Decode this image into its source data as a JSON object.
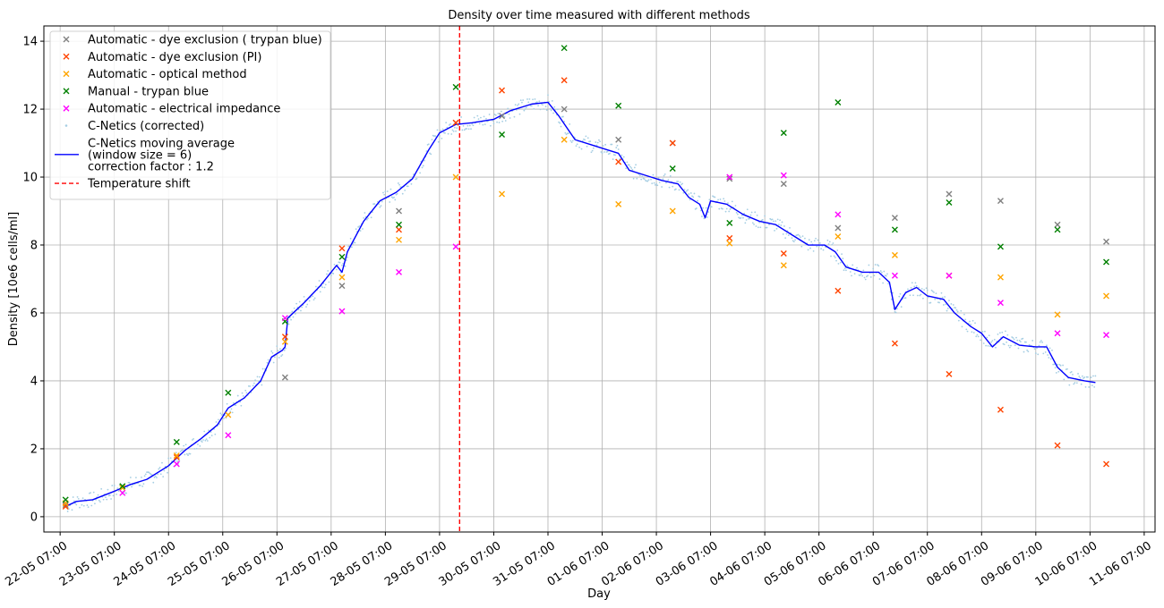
{
  "chart_data": {
    "type": "scatter",
    "title": "Density over time measured with different methods",
    "xlabel": "Day",
    "ylabel": "Density [10e6 cells/ml]",
    "xlim": [
      -0.3,
      20.2
    ],
    "ylim": [
      -0.45,
      14.45
    ],
    "grid": true,
    "x_unit": "days since 22-05 07:00",
    "x_ticks": [
      {
        "value": 0,
        "label": "22-05 07:00"
      },
      {
        "value": 1,
        "label": "23-05 07:00"
      },
      {
        "value": 2,
        "label": "24-05 07:00"
      },
      {
        "value": 3,
        "label": "25-05 07:00"
      },
      {
        "value": 4,
        "label": "26-05 07:00"
      },
      {
        "value": 5,
        "label": "27-05 07:00"
      },
      {
        "value": 6,
        "label": "28-05 07:00"
      },
      {
        "value": 7,
        "label": "29-05 07:00"
      },
      {
        "value": 8,
        "label": "30-05 07:00"
      },
      {
        "value": 9,
        "label": "31-05 07:00"
      },
      {
        "value": 10,
        "label": "01-06 07:00"
      },
      {
        "value": 11,
        "label": "02-06 07:00"
      },
      {
        "value": 12,
        "label": "03-06 07:00"
      },
      {
        "value": 13,
        "label": "04-06 07:00"
      },
      {
        "value": 14,
        "label": "05-06 07:00"
      },
      {
        "value": 15,
        "label": "06-06 07:00"
      },
      {
        "value": 16,
        "label": "07-06 07:00"
      },
      {
        "value": 17,
        "label": "08-06 07:00"
      },
      {
        "value": 18,
        "label": "09-06 07:00"
      },
      {
        "value": 19,
        "label": "10-06 07:00"
      },
      {
        "value": 20,
        "label": "11-06 07:00"
      }
    ],
    "y_ticks": [
      {
        "value": 0,
        "label": "0"
      },
      {
        "value": 2,
        "label": "2"
      },
      {
        "value": 4,
        "label": "4"
      },
      {
        "value": 6,
        "label": "6"
      },
      {
        "value": 8,
        "label": "8"
      },
      {
        "value": 10,
        "label": "10"
      },
      {
        "value": 12,
        "label": "12"
      },
      {
        "value": 14,
        "label": "14"
      }
    ],
    "legend_position": "top-left",
    "series": [
      {
        "name": "Automatic - dye exclusion ( trypan blue)",
        "kind": "marker-x",
        "color": "#808080",
        "points": [
          [
            0.1,
            0.35
          ],
          [
            4.15,
            4.1
          ],
          [
            5.2,
            6.8
          ],
          [
            6.25,
            9.0
          ],
          [
            7.3,
            11.6
          ],
          [
            8.15,
            11.8
          ],
          [
            9.3,
            12.0
          ],
          [
            10.3,
            11.1
          ],
          [
            11.3,
            11.0
          ],
          [
            12.35,
            9.95
          ],
          [
            13.35,
            9.8
          ],
          [
            14.35,
            8.5
          ],
          [
            15.4,
            8.8
          ],
          [
            16.4,
            9.5
          ],
          [
            17.35,
            9.3
          ],
          [
            18.4,
            8.6
          ],
          [
            19.3,
            8.1
          ]
        ]
      },
      {
        "name": "Automatic - dye exclusion (PI)",
        "kind": "marker-x",
        "color": "#ff4500",
        "points": [
          [
            0.1,
            0.3
          ],
          [
            2.15,
            1.75
          ],
          [
            4.15,
            5.3
          ],
          [
            5.2,
            7.9
          ],
          [
            6.25,
            8.45
          ],
          [
            7.3,
            11.6
          ],
          [
            8.15,
            12.55
          ],
          [
            9.3,
            12.85
          ],
          [
            10.3,
            10.45
          ],
          [
            11.3,
            11.0
          ],
          [
            12.35,
            8.2
          ],
          [
            13.35,
            7.75
          ],
          [
            14.35,
            6.65
          ],
          [
            15.4,
            5.1
          ],
          [
            16.4,
            4.2
          ],
          [
            17.35,
            3.15
          ],
          [
            18.4,
            2.1
          ],
          [
            19.3,
            1.55
          ]
        ]
      },
      {
        "name": "Automatic - optical method",
        "kind": "marker-x",
        "color": "#ffa500",
        "points": [
          [
            0.1,
            0.4
          ],
          [
            1.15,
            0.85
          ],
          [
            2.15,
            1.8
          ],
          [
            3.1,
            3.0
          ],
          [
            4.15,
            5.15
          ],
          [
            5.2,
            7.05
          ],
          [
            6.25,
            8.15
          ],
          [
            7.3,
            10.0
          ],
          [
            8.15,
            9.5
          ],
          [
            9.3,
            11.1
          ],
          [
            10.3,
            9.2
          ],
          [
            11.3,
            9.0
          ],
          [
            12.35,
            8.05
          ],
          [
            13.35,
            7.4
          ],
          [
            14.35,
            8.25
          ],
          [
            15.4,
            7.7
          ],
          [
            16.4,
            7.1
          ],
          [
            17.35,
            7.05
          ],
          [
            18.4,
            5.95
          ],
          [
            19.3,
            6.5
          ]
        ]
      },
      {
        "name": "Manual - trypan blue",
        "kind": "marker-x",
        "color": "#008000",
        "points": [
          [
            0.1,
            0.5
          ],
          [
            1.15,
            0.9
          ],
          [
            2.15,
            2.2
          ],
          [
            3.1,
            3.65
          ],
          [
            4.15,
            5.75
          ],
          [
            5.2,
            7.65
          ],
          [
            6.25,
            8.6
          ],
          [
            7.3,
            12.65
          ],
          [
            8.15,
            11.25
          ],
          [
            9.3,
            13.8
          ],
          [
            10.3,
            12.1
          ],
          [
            11.3,
            10.25
          ],
          [
            12.35,
            8.65
          ],
          [
            13.35,
            11.3
          ],
          [
            14.35,
            12.2
          ],
          [
            15.4,
            8.45
          ],
          [
            16.4,
            9.25
          ],
          [
            17.35,
            7.95
          ],
          [
            18.4,
            8.45
          ],
          [
            19.3,
            7.5
          ]
        ]
      },
      {
        "name": "Automatic - electrical impedance",
        "kind": "marker-x",
        "color": "#ff00ff",
        "points": [
          [
            1.15,
            0.7
          ],
          [
            2.15,
            1.55
          ],
          [
            3.1,
            2.4
          ],
          [
            4.15,
            5.85
          ],
          [
            5.2,
            6.05
          ],
          [
            6.25,
            7.2
          ],
          [
            7.3,
            7.95
          ],
          [
            12.35,
            10.0
          ],
          [
            13.35,
            10.05
          ],
          [
            14.35,
            8.9
          ],
          [
            15.4,
            7.1
          ],
          [
            16.4,
            7.1
          ],
          [
            17.35,
            6.3
          ],
          [
            18.4,
            5.4
          ],
          [
            19.3,
            5.35
          ]
        ]
      },
      {
        "name": "C-Netics (corrected)",
        "kind": "dots",
        "color": "#a6cee3"
      },
      {
        "name": "C-Netics moving average",
        "legend_lines": [
          "C-Netics moving average",
          "(window size = 6)",
          "correction factor : 1.2"
        ],
        "kind": "line",
        "color": "#0000ff",
        "points": [
          [
            0.1,
            0.3
          ],
          [
            0.3,
            0.45
          ],
          [
            0.6,
            0.5
          ],
          [
            1.0,
            0.75
          ],
          [
            1.3,
            0.95
          ],
          [
            1.6,
            1.1
          ],
          [
            2.0,
            1.5
          ],
          [
            2.3,
            1.95
          ],
          [
            2.6,
            2.3
          ],
          [
            2.9,
            2.7
          ],
          [
            3.1,
            3.2
          ],
          [
            3.4,
            3.5
          ],
          [
            3.7,
            4.0
          ],
          [
            3.9,
            4.7
          ],
          [
            4.1,
            4.9
          ],
          [
            4.15,
            5.0
          ],
          [
            4.2,
            5.85
          ],
          [
            4.5,
            6.3
          ],
          [
            4.8,
            6.8
          ],
          [
            5.1,
            7.4
          ],
          [
            5.2,
            7.2
          ],
          [
            5.3,
            7.8
          ],
          [
            5.6,
            8.7
          ],
          [
            5.9,
            9.3
          ],
          [
            6.2,
            9.55
          ],
          [
            6.5,
            9.95
          ],
          [
            6.8,
            10.8
          ],
          [
            7.0,
            11.3
          ],
          [
            7.3,
            11.55
          ],
          [
            7.6,
            11.6
          ],
          [
            8.0,
            11.7
          ],
          [
            8.3,
            11.95
          ],
          [
            8.7,
            12.15
          ],
          [
            9.0,
            12.2
          ],
          [
            9.2,
            11.8
          ],
          [
            9.5,
            11.1
          ],
          [
            9.8,
            10.95
          ],
          [
            10.1,
            10.8
          ],
          [
            10.3,
            10.7
          ],
          [
            10.5,
            10.2
          ],
          [
            10.8,
            10.05
          ],
          [
            11.1,
            9.9
          ],
          [
            11.4,
            9.8
          ],
          [
            11.6,
            9.4
          ],
          [
            11.8,
            9.2
          ],
          [
            11.9,
            8.8
          ],
          [
            12.0,
            9.3
          ],
          [
            12.3,
            9.2
          ],
          [
            12.6,
            8.9
          ],
          [
            12.9,
            8.7
          ],
          [
            13.2,
            8.6
          ],
          [
            13.5,
            8.3
          ],
          [
            13.8,
            8.0
          ],
          [
            14.1,
            8.0
          ],
          [
            14.3,
            7.8
          ],
          [
            14.5,
            7.35
          ],
          [
            14.8,
            7.2
          ],
          [
            15.1,
            7.2
          ],
          [
            15.3,
            6.9
          ],
          [
            15.4,
            6.1
          ],
          [
            15.6,
            6.6
          ],
          [
            15.8,
            6.75
          ],
          [
            16.0,
            6.5
          ],
          [
            16.3,
            6.4
          ],
          [
            16.5,
            6.0
          ],
          [
            16.8,
            5.6
          ],
          [
            17.0,
            5.4
          ],
          [
            17.2,
            5.0
          ],
          [
            17.4,
            5.3
          ],
          [
            17.7,
            5.05
          ],
          [
            18.0,
            5.0
          ],
          [
            18.2,
            5.0
          ],
          [
            18.4,
            4.4
          ],
          [
            18.6,
            4.1
          ],
          [
            18.9,
            4.0
          ],
          [
            19.1,
            3.95
          ]
        ]
      },
      {
        "name": "Temperature shift",
        "kind": "vline",
        "color": "#ff0000",
        "x": 7.37
      }
    ]
  }
}
